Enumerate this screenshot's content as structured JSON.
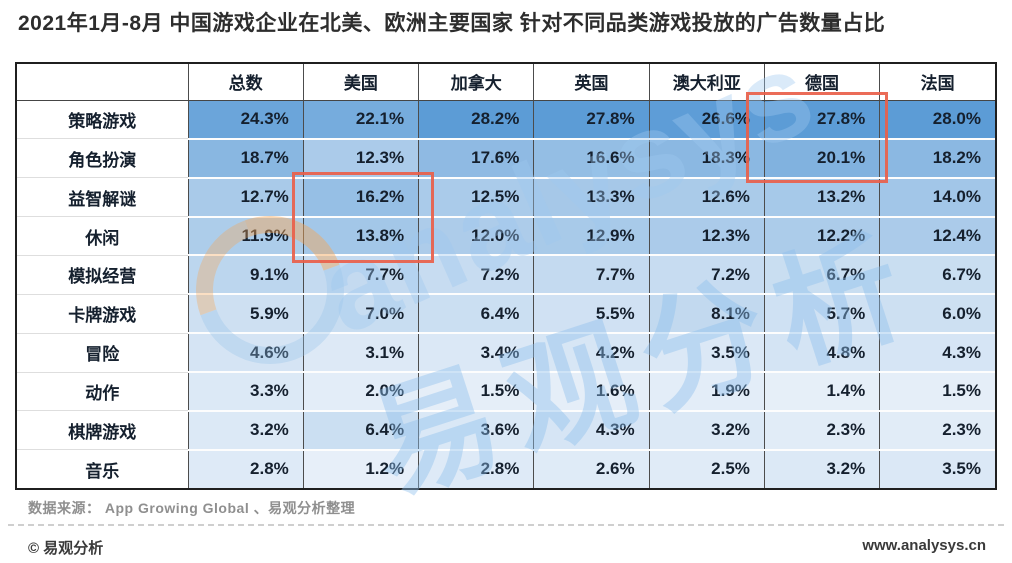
{
  "title": "2021年1月-8月 中国游戏企业在北美、欧洲主要国家 针对不同品类游戏投放的广告数量占比",
  "chart_data": {
    "type": "heatmap",
    "title": "2021年1月-8月 中国游戏企业在北美、欧洲主要国家 针对不同品类游戏投放的广告数量占比",
    "columns": [
      "总数",
      "美国",
      "加拿大",
      "英国",
      "澳大利亚",
      "德国",
      "法国"
    ],
    "rows": [
      "策略游戏",
      "角色扮演",
      "益智解谜",
      "休闲",
      "模拟经营",
      "卡牌游戏",
      "冒险",
      "动作",
      "棋牌游戏",
      "音乐"
    ],
    "values_percent": [
      [
        24.3,
        22.1,
        28.2,
        27.8,
        26.6,
        27.8,
        28.0
      ],
      [
        18.7,
        12.3,
        17.6,
        16.6,
        18.3,
        20.1,
        18.2
      ],
      [
        12.7,
        16.2,
        12.5,
        13.3,
        12.6,
        13.2,
        14.0
      ],
      [
        11.9,
        13.8,
        12.0,
        12.9,
        12.3,
        12.2,
        12.4
      ],
      [
        9.1,
        7.7,
        7.2,
        7.7,
        7.2,
        6.7,
        6.7
      ],
      [
        5.9,
        7.0,
        6.4,
        5.5,
        8.1,
        5.7,
        6.0
      ],
      [
        4.6,
        3.1,
        3.4,
        4.2,
        3.5,
        4.8,
        4.3
      ],
      [
        3.3,
        2.0,
        1.5,
        1.6,
        1.9,
        1.4,
        1.5
      ],
      [
        3.2,
        6.4,
        3.6,
        4.3,
        3.2,
        2.3,
        2.3
      ],
      [
        2.8,
        1.2,
        2.8,
        2.6,
        2.5,
        3.2,
        3.5
      ]
    ],
    "unit": "%",
    "color_scale": {
      "low": "#e8f0f9",
      "high": "#5c9cd6",
      "domain": [
        1,
        27
      ]
    },
    "legend": "none",
    "grid": "on",
    "highlight_boxes": [
      {
        "column": "美国",
        "rows": [
          "益智解谜",
          "休闲"
        ],
        "color": "#e9604a"
      },
      {
        "column": "德国",
        "rows": [
          "策略游戏",
          "角色扮演"
        ],
        "color": "#e9604a"
      }
    ]
  },
  "watermark": {
    "latin": "analysys",
    "cjk": "易观分析"
  },
  "footer": {
    "source": "数据来源：  App Growing Global 、易观分析整理",
    "copyright": "© 易观分析",
    "website": "www.analysys.cn"
  }
}
